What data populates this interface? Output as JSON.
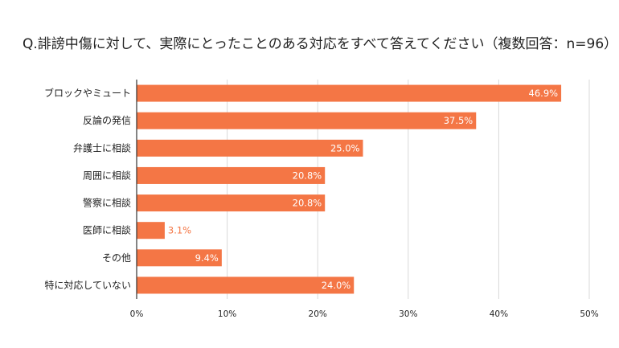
{
  "chart_data": {
    "type": "bar",
    "orientation": "horizontal",
    "title": "Q.誹謗中傷に対して、実際にとったことのある対応をすべて答えてください（複数回答：n=96）",
    "categories": [
      "ブロックやミュート",
      "反論の発信",
      "弁護士に相談",
      "周囲に相談",
      "警察に相談",
      "医師に相談",
      "その他",
      "特に対応していない"
    ],
    "values": [
      46.9,
      37.5,
      25.0,
      20.8,
      20.8,
      3.1,
      9.4,
      24.0
    ],
    "value_labels": [
      "46.9%",
      "37.5%",
      "25.0%",
      "20.8%",
      "20.8%",
      "3.1%",
      "9.4%",
      "24.0%"
    ],
    "xlim": [
      0,
      50
    ],
    "xticks": [
      0,
      10,
      20,
      30,
      40,
      50
    ],
    "xtick_labels": [
      "0%",
      "10%",
      "20%",
      "30%",
      "40%",
      "50%"
    ],
    "xlabel": "",
    "ylabel": "",
    "grid": true,
    "colors": {
      "bar": "#f47645",
      "grid": "#d9d9d9",
      "axis": "#333333",
      "label_inside": "#ffffff",
      "label_outside": "#f47645"
    }
  }
}
